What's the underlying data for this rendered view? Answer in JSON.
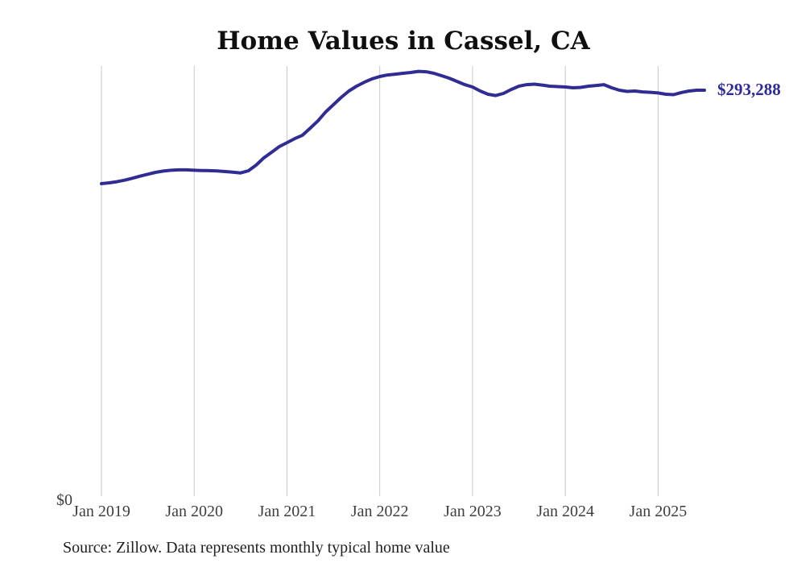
{
  "chart": {
    "title": "Home Values in Cassel, CA",
    "source": "Source: Zillow. Data represents monthly typical home value",
    "colors": {
      "line": "#302c94",
      "end_label": "#2e2b96",
      "gridline": "#c8c8c8",
      "tick_label": "#3e3e3e",
      "title": "#0f0f0f",
      "source": "#1f1f1f",
      "background": "#ffffff"
    }
  },
  "chart_data": {
    "type": "line",
    "title": "Home Values in Cassel, CA",
    "xlabel": "",
    "ylabel": "",
    "x_tick_labels": [
      "Jan 2019",
      "Jan 2020",
      "Jan 2021",
      "Jan 2022",
      "Jan 2023",
      "Jan 2024",
      "Jan 2025"
    ],
    "y_axis_zero_label": "$0",
    "ylim": [
      0,
      330000
    ],
    "grid": "vertical-only",
    "legend": "none",
    "final_value": 293288,
    "final_value_label": "$293,288",
    "series": [
      {
        "name": "Monthly typical home value",
        "months": [
          "2019-01",
          "2019-02",
          "2019-03",
          "2019-04",
          "2019-05",
          "2019-06",
          "2019-07",
          "2019-08",
          "2019-09",
          "2019-10",
          "2019-11",
          "2019-12",
          "2020-01",
          "2020-02",
          "2020-03",
          "2020-04",
          "2020-05",
          "2020-06",
          "2020-07",
          "2020-08",
          "2020-09",
          "2020-10",
          "2020-11",
          "2020-12",
          "2021-01",
          "2021-02",
          "2021-03",
          "2021-04",
          "2021-05",
          "2021-06",
          "2021-07",
          "2021-08",
          "2021-09",
          "2021-10",
          "2021-11",
          "2021-12",
          "2022-01",
          "2022-02",
          "2022-03",
          "2022-04",
          "2022-05",
          "2022-06",
          "2022-07",
          "2022-08",
          "2022-09",
          "2022-10",
          "2022-11",
          "2022-12",
          "2023-01",
          "2023-02",
          "2023-03",
          "2023-04",
          "2023-05",
          "2023-06",
          "2023-07",
          "2023-08",
          "2023-09",
          "2023-10",
          "2023-11",
          "2023-12",
          "2024-01",
          "2024-02",
          "2024-03",
          "2024-04",
          "2024-05",
          "2024-06",
          "2024-07",
          "2024-08",
          "2024-09",
          "2024-10",
          "2024-11",
          "2024-12",
          "2025-01",
          "2025-02",
          "2025-03",
          "2025-04",
          "2025-05",
          "2025-06",
          "2025-07"
        ],
        "values": [
          226300,
          226900,
          227700,
          228800,
          230200,
          231700,
          233100,
          234400,
          235300,
          235900,
          236200,
          236200,
          235900,
          235700,
          235600,
          235400,
          235000,
          234500,
          234000,
          235500,
          239600,
          244800,
          248800,
          252900,
          255700,
          258600,
          261000,
          266100,
          271300,
          277700,
          282900,
          288100,
          292700,
          296200,
          299000,
          301400,
          303100,
          304200,
          304800,
          305400,
          306000,
          306800,
          306500,
          305400,
          303700,
          301900,
          299600,
          297300,
          295600,
          292700,
          290400,
          289500,
          291000,
          293800,
          296200,
          297300,
          297600,
          297000,
          296200,
          295900,
          295600,
          295000,
          295300,
          296200,
          296700,
          297300,
          295000,
          293300,
          292400,
          292700,
          292100,
          291800,
          291300,
          290400,
          290100,
          291600,
          292700,
          293300,
          293288
        ]
      }
    ]
  }
}
